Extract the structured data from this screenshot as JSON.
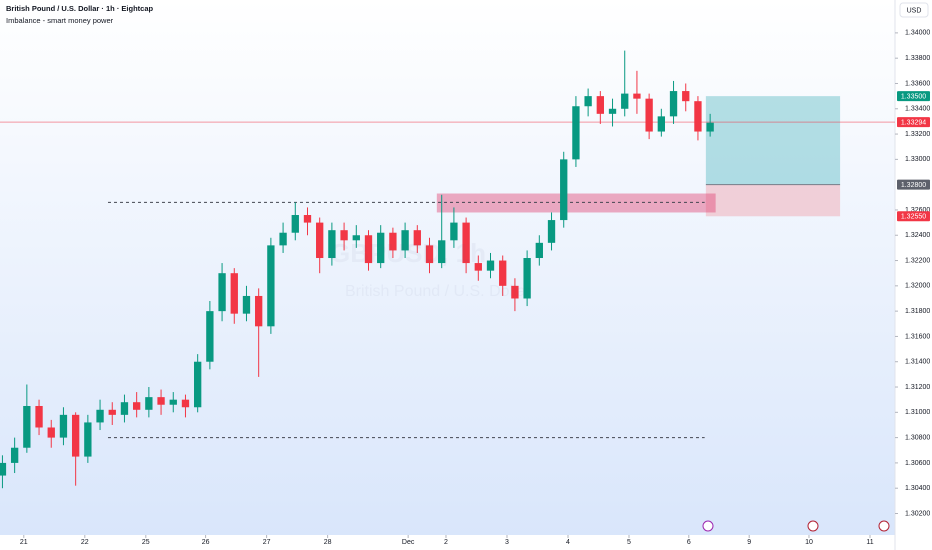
{
  "chart_data": {
    "type": "candlestick",
    "title": "British Pound / U.S. Dollar · 1h · Eightcap",
    "subtitle": "Imbalance - smart money power",
    "currency": "USD",
    "watermark": [
      "GBPUSD, 1h",
      "British Pound / U.S. Dollar"
    ],
    "up_color": "#089981",
    "down_color": "#f23645",
    "grid": false,
    "xlim": [
      -0.39,
      14.28
    ],
    "ylim": [
      1.3003,
      1.3426
    ],
    "xticks": [
      {
        "value": 0,
        "label": "21"
      },
      {
        "value": 1,
        "label": "22"
      },
      {
        "value": 2,
        "label": "25"
      },
      {
        "value": 2.98,
        "label": "26"
      },
      {
        "value": 3.98,
        "label": "27"
      },
      {
        "value": 4.98,
        "label": "28"
      },
      {
        "value": 6.3,
        "label": "Dec"
      },
      {
        "value": 6.92,
        "label": "2"
      },
      {
        "value": 7.92,
        "label": "3"
      },
      {
        "value": 8.92,
        "label": "4"
      },
      {
        "value": 9.92,
        "label": "5"
      },
      {
        "value": 10.9,
        "label": "6"
      },
      {
        "value": 11.89,
        "label": "9"
      },
      {
        "value": 12.87,
        "label": "10"
      },
      {
        "value": 13.87,
        "label": "11"
      }
    ],
    "yticks": [
      {
        "value": 1.302,
        "label": "1.30200"
      },
      {
        "value": 1.304,
        "label": "1.30400"
      },
      {
        "value": 1.306,
        "label": "1.30600"
      },
      {
        "value": 1.308,
        "label": "1.30800"
      },
      {
        "value": 1.31,
        "label": "1.31000"
      },
      {
        "value": 1.312,
        "label": "1.31200"
      },
      {
        "value": 1.314,
        "label": "1.31400"
      },
      {
        "value": 1.316,
        "label": "1.31600"
      },
      {
        "value": 1.318,
        "label": "1.31800"
      },
      {
        "value": 1.32,
        "label": "1.32000"
      },
      {
        "value": 1.322,
        "label": "1.32200"
      },
      {
        "value": 1.324,
        "label": "1.32400"
      },
      {
        "value": 1.326,
        "label": "1.32600"
      },
      {
        "value": 1.33,
        "label": "1.33000"
      },
      {
        "value": 1.332,
        "label": "1.33200"
      },
      {
        "value": 1.334,
        "label": "1.33400"
      },
      {
        "value": 1.336,
        "label": "1.33600"
      },
      {
        "value": 1.338,
        "label": "1.33800"
      },
      {
        "value": 1.34,
        "label": "1.34000"
      }
    ],
    "x": [
      -0.35,
      -0.15,
      0.05,
      0.25,
      0.45,
      0.65,
      0.85,
      1.05,
      1.25,
      1.45,
      1.65,
      1.85,
      2.05,
      2.25,
      2.45,
      2.65,
      2.85,
      3.05,
      3.25,
      3.45,
      3.65,
      3.85,
      4.05,
      4.25,
      4.45,
      4.65,
      4.85,
      5.05,
      5.25,
      5.45,
      5.65,
      5.85,
      6.05,
      6.25,
      6.45,
      6.65,
      6.85,
      7.05,
      7.25,
      7.45,
      7.65,
      7.85,
      8.05,
      8.25,
      8.45,
      8.65,
      8.85,
      9.05,
      9.25,
      9.45,
      9.65,
      9.85,
      10.05,
      10.25,
      10.45,
      10.65,
      10.85,
      11.05,
      11.25
    ],
    "open": [
      1.305,
      1.306,
      1.3072,
      1.3105,
      1.3088,
      1.308,
      1.3098,
      1.3065,
      1.3092,
      1.3102,
      1.3098,
      1.3108,
      1.3102,
      1.3112,
      1.3106,
      1.311,
      1.3104,
      1.314,
      1.318,
      1.321,
      1.3178,
      1.3192,
      1.3168,
      1.3232,
      1.3242,
      1.3256,
      1.325,
      1.3222,
      1.3244,
      1.3236,
      1.324,
      1.3218,
      1.3242,
      1.3228,
      1.3244,
      1.3232,
      1.3218,
      1.3236,
      1.325,
      1.3218,
      1.3212,
      1.322,
      1.32,
      1.319,
      1.3222,
      1.3234,
      1.3252,
      1.33,
      1.3342,
      1.335,
      1.3336,
      1.334,
      1.3352,
      1.3348,
      1.3322,
      1.3334,
      1.3354,
      1.3346,
      1.3322
    ],
    "high": [
      1.3066,
      1.308,
      1.3122,
      1.311,
      1.3094,
      1.3104,
      1.31,
      1.3098,
      1.311,
      1.3108,
      1.3114,
      1.3116,
      1.312,
      1.3118,
      1.3116,
      1.3114,
      1.3146,
      1.3188,
      1.3218,
      1.3214,
      1.32,
      1.3198,
      1.3238,
      1.325,
      1.3266,
      1.3262,
      1.3254,
      1.325,
      1.325,
      1.3248,
      1.3244,
      1.3248,
      1.3246,
      1.325,
      1.3248,
      1.3238,
      1.3272,
      1.3262,
      1.3254,
      1.3224,
      1.3226,
      1.3224,
      1.3206,
      1.3228,
      1.324,
      1.3258,
      1.3306,
      1.335,
      1.3356,
      1.3354,
      1.3348,
      1.3386,
      1.337,
      1.3352,
      1.334,
      1.3362,
      1.336,
      1.335,
      1.3336
    ],
    "low": [
      1.304,
      1.3052,
      1.3068,
      1.3082,
      1.3072,
      1.3074,
      1.3042,
      1.306,
      1.3086,
      1.309,
      1.3092,
      1.3096,
      1.3096,
      1.3098,
      1.31,
      1.3096,
      1.31,
      1.3134,
      1.3172,
      1.317,
      1.3172,
      1.3128,
      1.3162,
      1.3226,
      1.3236,
      1.324,
      1.321,
      1.3216,
      1.3228,
      1.323,
      1.3212,
      1.3214,
      1.3222,
      1.3222,
      1.3226,
      1.321,
      1.3214,
      1.323,
      1.321,
      1.3204,
      1.3206,
      1.3192,
      1.318,
      1.3184,
      1.3216,
      1.3228,
      1.3246,
      1.3294,
      1.3334,
      1.3328,
      1.3326,
      1.3334,
      1.3336,
      1.3316,
      1.3318,
      1.3328,
      1.3338,
      1.3315,
      1.3318
    ],
    "close": [
      1.306,
      1.3072,
      1.3105,
      1.3088,
      1.308,
      1.3098,
      1.3065,
      1.3092,
      1.3102,
      1.3098,
      1.3108,
      1.3102,
      1.3112,
      1.3106,
      1.311,
      1.3104,
      1.314,
      1.318,
      1.321,
      1.3178,
      1.3192,
      1.3168,
      1.3232,
      1.3242,
      1.3256,
      1.325,
      1.3222,
      1.3244,
      1.3236,
      1.324,
      1.3218,
      1.3242,
      1.3228,
      1.3244,
      1.3232,
      1.3218,
      1.3236,
      1.325,
      1.3218,
      1.3212,
      1.322,
      1.32,
      1.319,
      1.3222,
      1.3234,
      1.3252,
      1.33,
      1.3342,
      1.335,
      1.3336,
      1.334,
      1.3352,
      1.3348,
      1.3322,
      1.3334,
      1.3354,
      1.3346,
      1.3322,
      1.3329
    ],
    "levels": [
      {
        "value": 1.3266,
        "x": [
          1.38,
          11.16
        ]
      },
      {
        "value": 1.308,
        "x": [
          1.38,
          11.16
        ]
      }
    ],
    "imbalance": {
      "top": 1.3273,
      "bottom": 1.3258,
      "x": [
        6.77,
        11.34
      ]
    },
    "position": {
      "entry": 1.328,
      "target": 1.335,
      "stop": 1.3255,
      "x": [
        11.18,
        13.38
      ]
    },
    "price_tags": [
      {
        "value": 1.335,
        "label": "1.33500",
        "color": "#089981"
      },
      {
        "value": 1.33294,
        "label": "1.33294",
        "color": "#f23645"
      },
      {
        "value": 1.328,
        "label": "1.32800",
        "color": "#5d606b"
      },
      {
        "value": 1.3255,
        "label": "1.32550",
        "color": "#f23645"
      }
    ]
  }
}
